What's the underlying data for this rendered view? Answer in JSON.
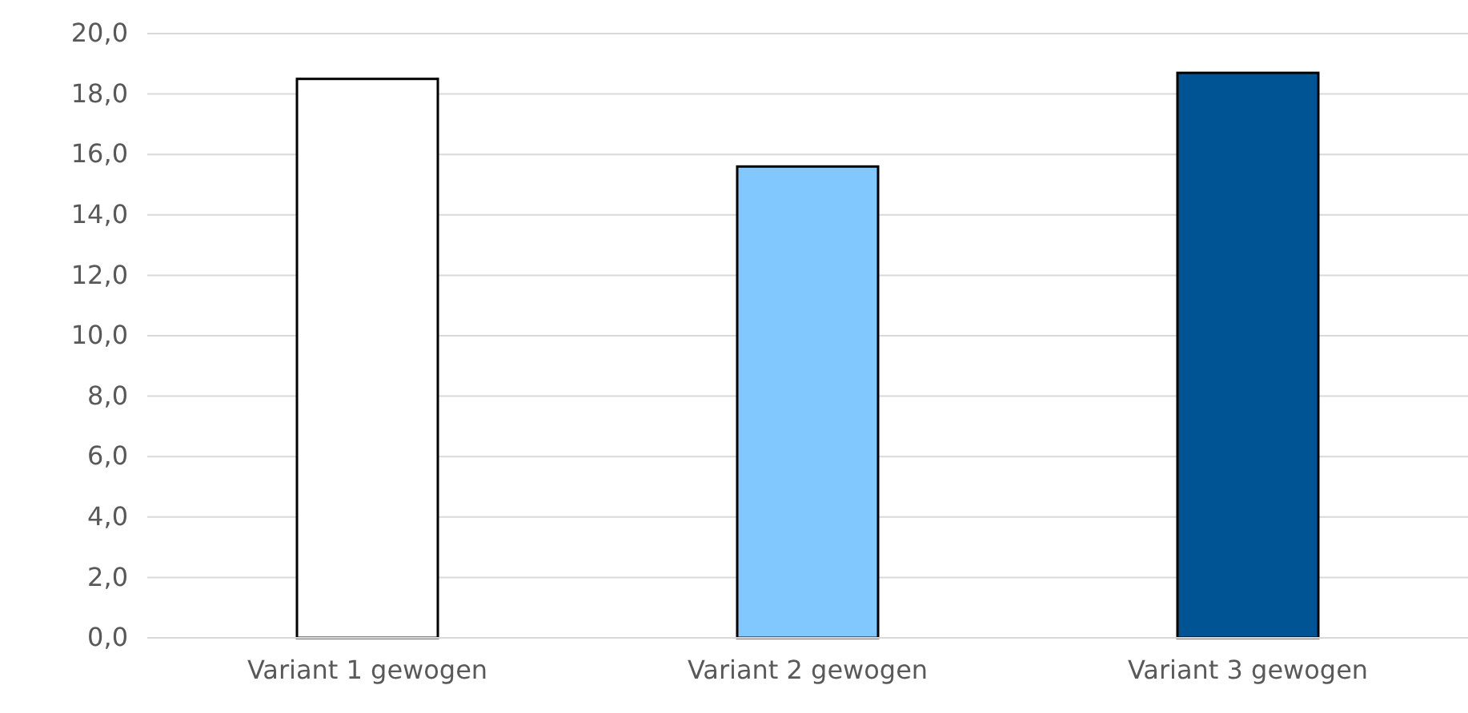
{
  "chart_data": {
    "type": "bar",
    "categories": [
      "Variant 1 gewogen",
      "Variant 2 gewogen",
      "Variant 3 gewogen"
    ],
    "values": [
      18.5,
      15.6,
      18.7
    ],
    "colors": [
      "#ffffff",
      "#80c8ff",
      "#005494"
    ],
    "ylim": [
      0,
      20
    ],
    "yticks": [
      {
        "value": 0,
        "label": "0,0"
      },
      {
        "value": 2,
        "label": "2,0"
      },
      {
        "value": 4,
        "label": "4,0"
      },
      {
        "value": 6,
        "label": "6,0"
      },
      {
        "value": 8,
        "label": "8,0"
      },
      {
        "value": 10,
        "label": "10,0"
      },
      {
        "value": 12,
        "label": "12,0"
      },
      {
        "value": 14,
        "label": "14,0"
      },
      {
        "value": 16,
        "label": "16,0"
      },
      {
        "value": 18,
        "label": "18,0"
      },
      {
        "value": 20,
        "label": "20,0"
      }
    ],
    "grid": "y"
  }
}
